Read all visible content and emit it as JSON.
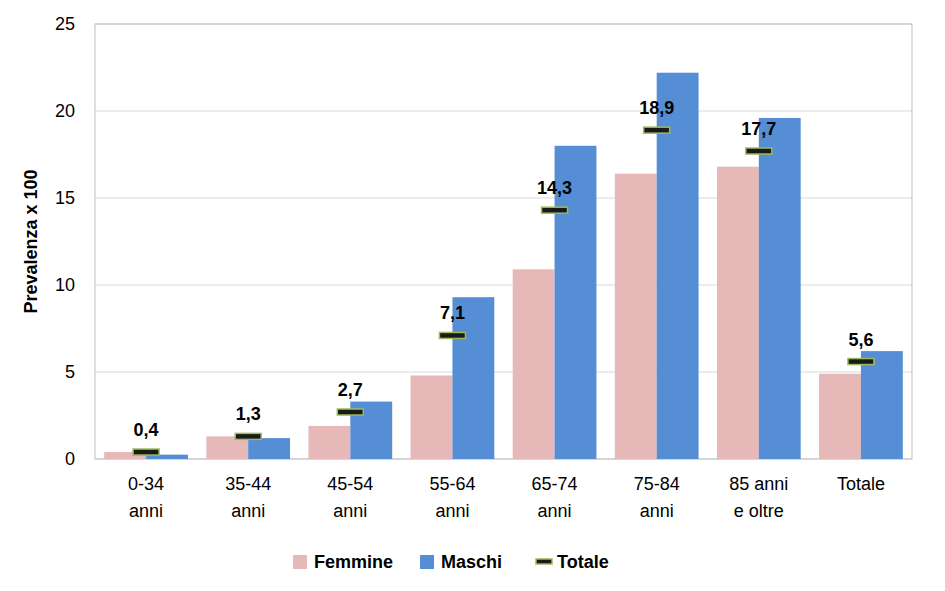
{
  "chart_data": {
    "type": "bar",
    "y_label": "Prevalenza x 100",
    "categories": [
      "0-34\nanni",
      "35-44\nanni",
      "45-54\nanni",
      "55-64\nanni",
      "65-74\nanni",
      "75-84\nanni",
      "85 anni\ne oltre",
      "Totale"
    ],
    "series": [
      {
        "name": "Femmine",
        "type": "bar",
        "color": "#e6b9b8",
        "values": [
          0.4,
          1.3,
          1.9,
          4.8,
          10.9,
          16.4,
          16.8,
          4.9
        ]
      },
      {
        "name": "Maschi",
        "type": "bar",
        "color": "#558ed5",
        "values": [
          0.25,
          1.2,
          3.3,
          9.3,
          18.0,
          22.2,
          19.6,
          6.2
        ]
      },
      {
        "name": "Totale",
        "type": "marker",
        "marker": "dash",
        "color": "#1a1a1a",
        "data_labels": true,
        "values": [
          0.4,
          1.3,
          2.7,
          7.1,
          14.3,
          18.9,
          17.7,
          5.6
        ],
        "value_labels": [
          "0,4",
          "1,3",
          "2,7",
          "7,1",
          "14,3",
          "18,9",
          "17,7",
          "5,6"
        ]
      }
    ],
    "ylim": [
      0,
      25
    ],
    "yticks": [
      0,
      5,
      10,
      15,
      20,
      25
    ],
    "grid": true,
    "legend": "bottom"
  }
}
